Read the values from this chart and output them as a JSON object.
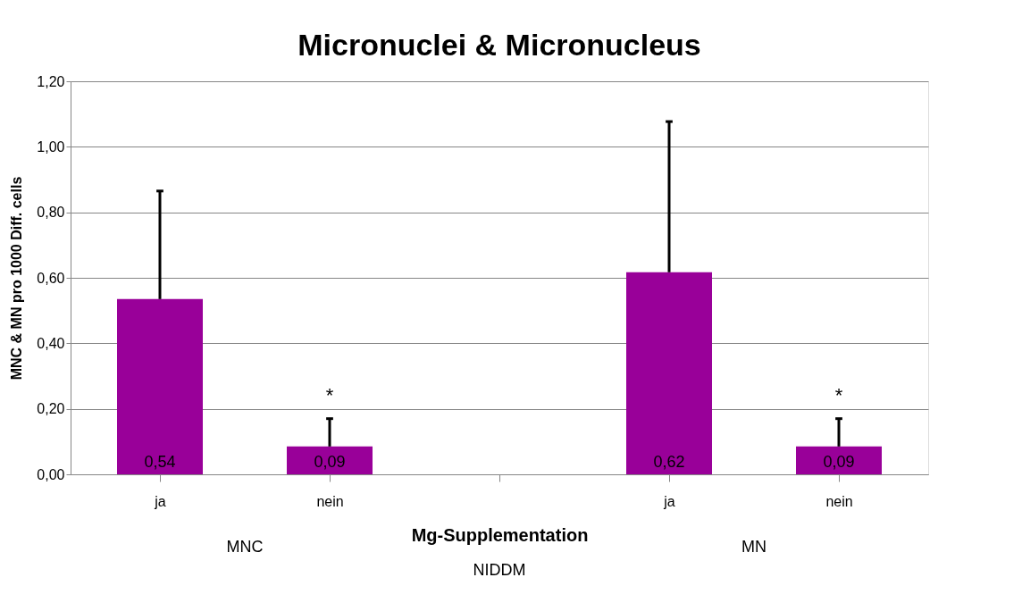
{
  "chart_data": {
    "type": "bar",
    "title": "Micronuclei & Micronucleus",
    "xlabel": "Mg-Supplementation",
    "ylabel": "MNC & MN pro 1000 Diff. cells",
    "categories": [
      "ja",
      "nein",
      null,
      "ja",
      "nein"
    ],
    "values": [
      0.535,
      0.085,
      null,
      0.617,
      0.085
    ],
    "value_labels": [
      "0,54",
      "0,09",
      null,
      "0,62",
      "0,09"
    ],
    "errors": [
      [
        0.535,
        0.865
      ],
      [
        0.085,
        0.17
      ],
      null,
      [
        0.617,
        1.077
      ],
      [
        0.085,
        0.17
      ]
    ],
    "color": "#990099",
    "ylim": [
      0,
      1.2
    ],
    "yticks": [
      {
        "value": 0,
        "label": "0,00"
      },
      {
        "value": 0.2,
        "label": "0,20"
      },
      {
        "value": 0.4,
        "label": "0,40"
      },
      {
        "value": 0.6,
        "label": "0,60"
      },
      {
        "value": 0.8,
        "label": "0,80"
      },
      {
        "value": 1.0,
        "label": "1,00"
      },
      {
        "value": 1.2,
        "label": "1,20"
      }
    ],
    "grid": "y",
    "annotations": [
      "MNC",
      "MN",
      "NIDDM",
      "*",
      "*"
    ]
  }
}
